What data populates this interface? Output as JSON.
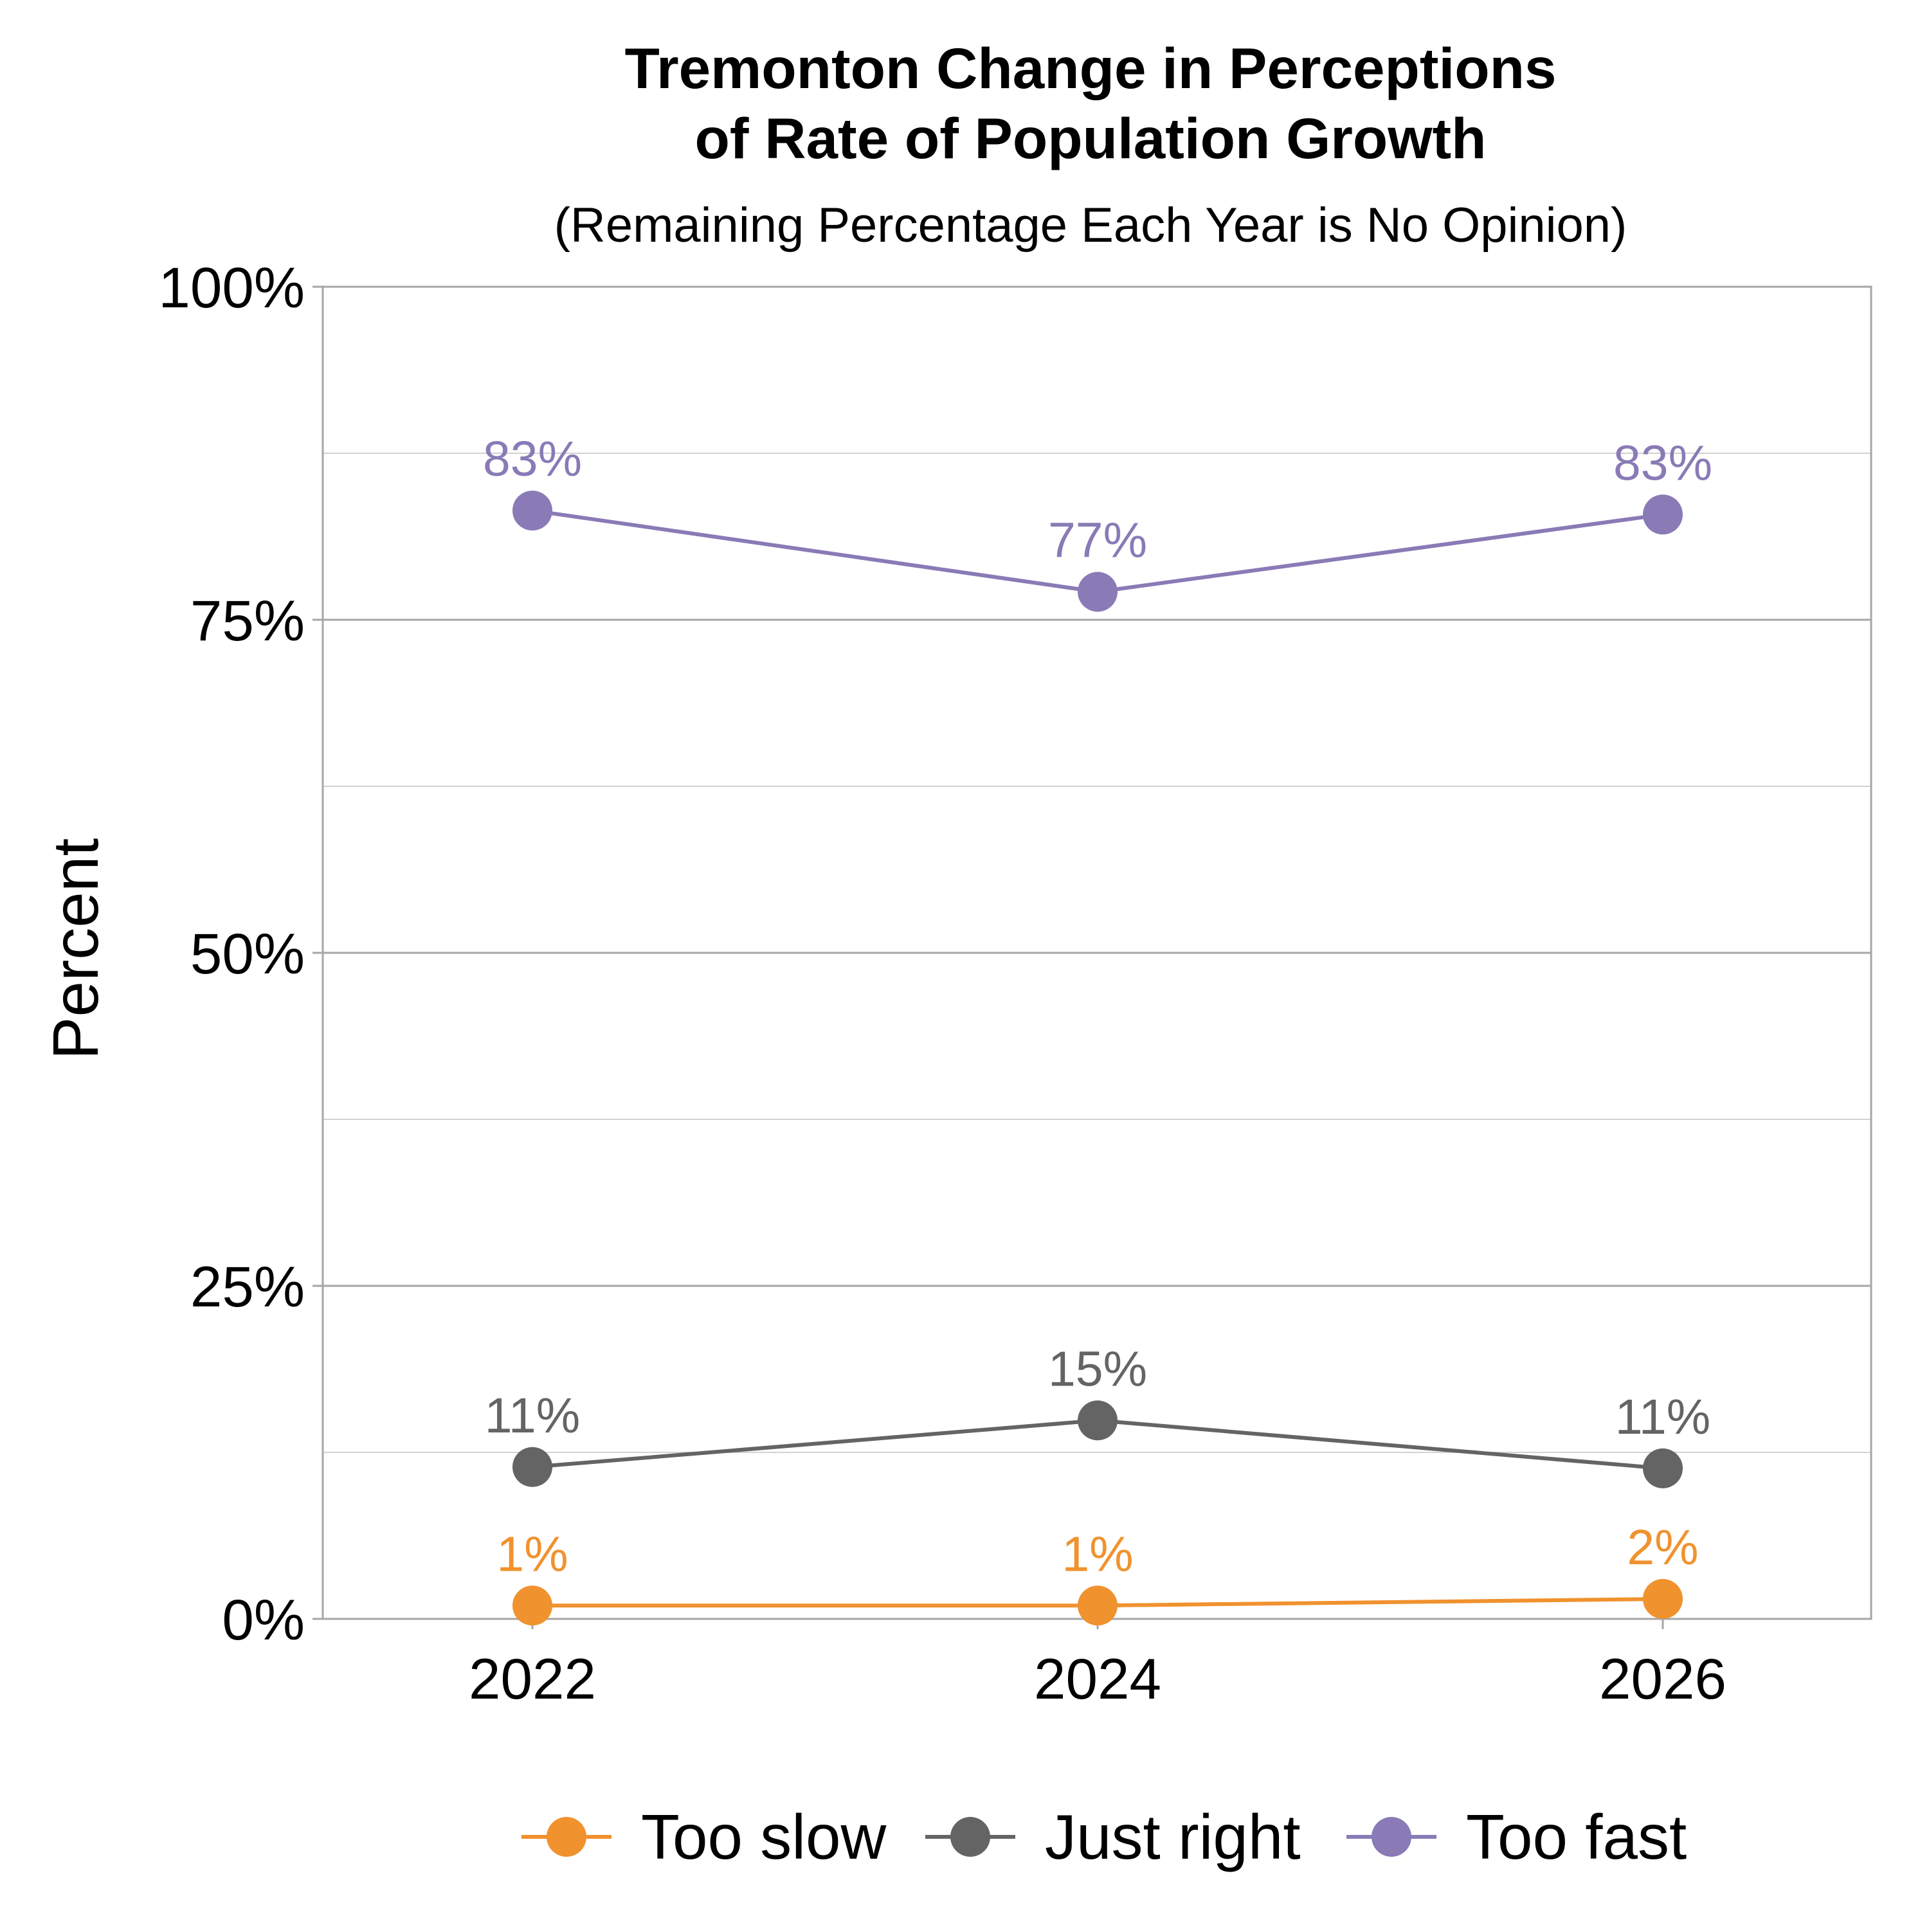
{
  "chart_data": {
    "type": "line",
    "title_lines": [
      "Tremonton Change in Perceptions",
      "of Rate of Population Growth"
    ],
    "subtitle": "(Remaining Percentage Each Year is No Opinion)",
    "ylabel": "Percent",
    "xlabel": "",
    "categories": [
      "2022",
      "2024",
      "2026"
    ],
    "ylim": [
      0,
      100
    ],
    "y_ticks": [
      0,
      25,
      50,
      75,
      100
    ],
    "y_tick_labels": [
      "0%",
      "25%",
      "50%",
      "75%",
      "100%"
    ],
    "grid": true,
    "legend_position": "bottom",
    "series": [
      {
        "name": "Too slow",
        "color": "#F0922E",
        "values": [
          1,
          1,
          1.5
        ],
        "labels": [
          "1%",
          "1%",
          "2%"
        ]
      },
      {
        "name": "Just right",
        "color": "#646464",
        "values": [
          11.4,
          14.9,
          11.3
        ],
        "labels": [
          "11%",
          "15%",
          "11%"
        ]
      },
      {
        "name": "Too fast",
        "color": "#8A7AB6",
        "values": [
          83.2,
          77.1,
          82.9
        ],
        "labels": [
          "83%",
          "77%",
          "83%"
        ]
      }
    ]
  }
}
